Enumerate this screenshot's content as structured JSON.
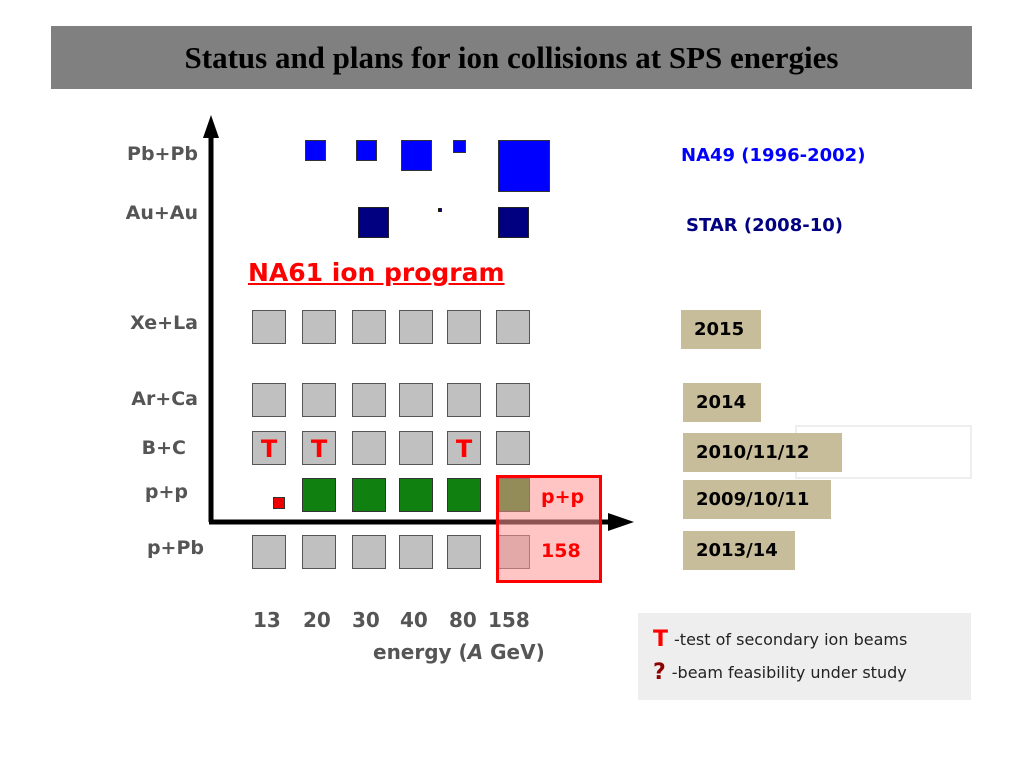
{
  "title": "Status and plans for ion collisions at SPS energies",
  "rows": [
    "Pb+Pb",
    "Au+Au",
    "Xe+La",
    "Ar+Ca",
    "B+C",
    "p+p",
    "p+Pb"
  ],
  "program_label": "NA61 ion program",
  "energies": [
    "13",
    "20",
    "30",
    "40",
    "80",
    "158"
  ],
  "energy_axis_label_pre": "energy (",
  "energy_axis_label_it": "A",
  "energy_axis_label_post": " GeV)",
  "experiments": [
    {
      "label": "NA49 (1996-2002)",
      "color": "#0000ff"
    },
    {
      "label": "STAR (2008-10)",
      "color": "#000080"
    }
  ],
  "years": [
    "2015",
    "2014",
    "2010/11/12",
    "2009/10/11",
    "2013/14"
  ],
  "test_mark": "T",
  "highlight": {
    "label_top": "p+p",
    "label_bottom": "158"
  },
  "legend": [
    {
      "symbol": "T",
      "text": "-test of secondary ion beams",
      "color": "#ff0000"
    },
    {
      "symbol": "?",
      "text": "-beam feasibility under study",
      "color": "#8b0000"
    }
  ],
  "colors": {
    "grey_cell": "#c0c0c0",
    "green_cell": "#108010",
    "na49": "#0000ff",
    "star": "#000080",
    "year_box": "#c8bd9a",
    "highlight": "#ff0000"
  }
}
